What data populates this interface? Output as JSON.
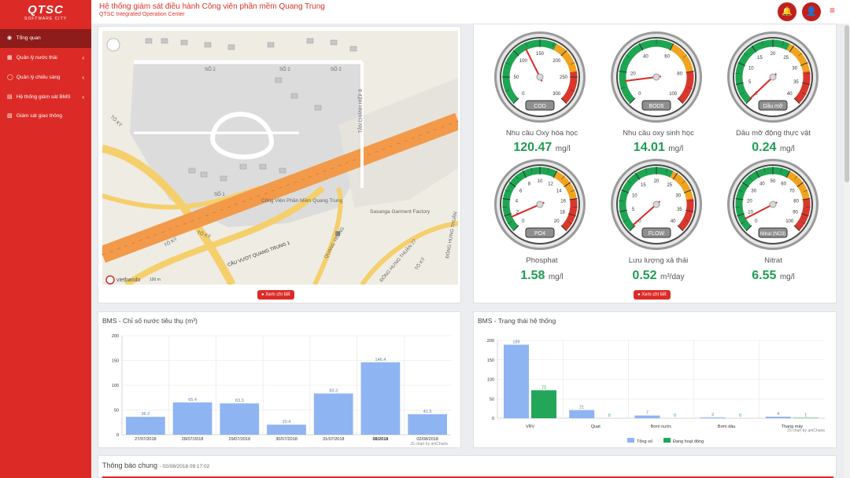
{
  "app": {
    "logo": "QTSC",
    "logo_tagline": "SOFTWARE CITY",
    "title": "Hệ thống giám sát điều hành Công viên phần mềm Quang Trung",
    "subtitle": "QTSC Integrated Operation Center"
  },
  "header": {
    "icons": [
      "bell-icon",
      "user-icon",
      "menu-icon"
    ]
  },
  "sidebar": {
    "items": [
      {
        "label": "Tổng quan",
        "icon": "globe-icon",
        "active": true
      },
      {
        "label": "Quản lý nước thải",
        "icon": "factory-icon",
        "chevron": true
      },
      {
        "label": "Quản lý chiếu sáng",
        "icon": "bulb-icon",
        "chevron": true
      },
      {
        "label": "Hệ thống giám sát BMS",
        "icon": "building-icon",
        "chevron": true
      },
      {
        "label": "Giám sát giao thông",
        "icon": "car-icon"
      }
    ]
  },
  "map": {
    "labels": [
      "SỐ 2",
      "SỐ 2",
      "SỐ 2",
      "SỐ 1",
      "Công Viên Phần Mềm Quang Trung",
      "Sasanga Garment Factory",
      "CẦU VƯỢT QUANG TRUNG 1",
      "TÔ KÝ",
      "TÔ KÝ",
      "TÔ KÝ",
      "TÔ KÝ",
      "QUANG TRUNG",
      "TÂN CHÁNH HIỆP 8",
      "ĐÔNG HƯNG THUẬN 27",
      "ĐÔNG HƯNG THUẬN"
    ],
    "scale": "100 m",
    "brand": "vietbando",
    "detail_button": "Xem chi tiết"
  },
  "gauges": [
    {
      "code": "COD",
      "label": "Nhu cầu Oxy hóa học",
      "value": "120.47",
      "unit": "mg/l",
      "min": 0,
      "max": 300,
      "val": 120.47,
      "ticks": [
        "0",
        "50",
        "100",
        "150",
        "200",
        "250",
        "300"
      ]
    },
    {
      "code": "BOD5",
      "label": "Nhu cầu oxy sinh học",
      "value": "14.01",
      "unit": "mg/l",
      "min": 0,
      "max": 100,
      "val": 14.01,
      "ticks": [
        "0",
        "20",
        "40",
        "60",
        "80",
        "100"
      ]
    },
    {
      "code": "Dầu mỡ",
      "label": "Dầu mỡ động thực vật",
      "value": "0.24",
      "unit": "mg/l",
      "min": 0,
      "max": 40,
      "val": 0.24,
      "ticks": [
        "0",
        "5",
        "10",
        "15",
        "20",
        "25",
        "30",
        "35",
        "40"
      ]
    },
    {
      "code": "PO4",
      "label": "Phosphat",
      "value": "1.58",
      "unit": "mg/l",
      "min": 0,
      "max": 20,
      "val": 1.58,
      "ticks": [
        "0",
        "2",
        "4",
        "6",
        "8",
        "10",
        "12",
        "14",
        "16",
        "18",
        "20"
      ]
    },
    {
      "code": "FLOW",
      "label": "Lưu lượng xả thải",
      "value": "0.52",
      "unit": "m³/day",
      "min": 0,
      "max": 40,
      "val": 0.52,
      "ticks": [
        "0",
        "5",
        "10",
        "15",
        "20",
        "25",
        "30",
        "35",
        "40"
      ]
    },
    {
      "code": "Nitrat (NO3)",
      "label": "Nitrat",
      "value": "6.55",
      "unit": "mg/l",
      "min": 0,
      "max": 100,
      "val": 6.55,
      "ticks": [
        "0",
        "10",
        "20",
        "30",
        "40",
        "50",
        "60",
        "70",
        "80",
        "90",
        "100"
      ]
    }
  ],
  "gauge_card": {
    "detail_button": "Xem chi tiết"
  },
  "bms_water": {
    "title": "BMS - Chỉ số nước tiêu thụ (m³)",
    "credit": "JS chart by amCharts"
  },
  "bms_status": {
    "title": "BMS - Trạng thái hệ thống",
    "credit": "JS chart by amCharts"
  },
  "chart_data": [
    {
      "type": "bar",
      "title": "BMS - Chỉ số nước tiêu thụ (m³)",
      "categories": [
        "27/07/2018",
        "28/07/2018",
        "29/07/2018",
        "30/07/2018",
        "31/07/2018",
        "08/2018",
        "02/08/2018"
      ],
      "values": [
        36.2,
        65.4,
        63.3,
        20.4,
        83.3,
        146.4,
        41.5
      ],
      "ylim": [
        0,
        200
      ],
      "yticks": [
        0,
        50,
        100,
        150,
        200
      ],
      "color": "#8fb4f2"
    },
    {
      "type": "bar",
      "title": "BMS - Trạng thái hệ thống",
      "categories": [
        "VRV",
        "Quạt",
        "Bơm nước",
        "Bơm dầu",
        "Thang máy"
      ],
      "series": [
        {
          "name": "Tổng số",
          "values": [
            189,
            21,
            7,
            2,
            4
          ],
          "color": "#8fb4f2"
        },
        {
          "name": "Đang hoạt động",
          "values": [
            72,
            0,
            0,
            0,
            1
          ],
          "color": "#23a55a"
        }
      ],
      "ylim": [
        0,
        200
      ],
      "yticks": [
        0,
        50,
        100,
        150,
        200
      ],
      "legend": "bottom"
    }
  ],
  "notice": {
    "title": "Thông báo chung",
    "timestamp": "- 02/08/2018 09:17:02"
  }
}
